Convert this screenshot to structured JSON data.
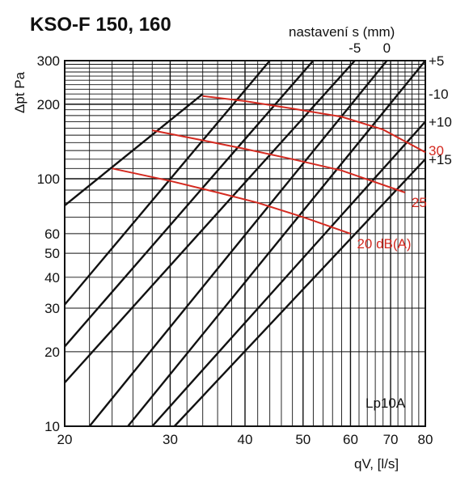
{
  "chart_data": {
    "type": "line",
    "title": "KSO-F 150, 160",
    "top_axis_label": "nastavení s (mm)",
    "xlabel": "qV, [l/s]",
    "ylabel": "Δpt Pa",
    "x_scale": "log",
    "y_scale": "log",
    "xlim": [
      20,
      80
    ],
    "ylim": [
      10,
      300
    ],
    "x_ticks": [
      20,
      30,
      40,
      50,
      60,
      70,
      80
    ],
    "y_ticks": [
      10,
      20,
      30,
      40,
      50,
      60,
      100,
      200,
      300
    ],
    "grid": true,
    "settings_lines": [
      {
        "label": "-10",
        "points": [
          [
            20,
            78
          ],
          [
            34,
            220
          ]
        ]
      },
      {
        "label": "",
        "points": [
          [
            20,
            31
          ],
          [
            44,
            300
          ]
        ]
      },
      {
        "label": "",
        "points": [
          [
            20,
            21
          ],
          [
            52,
            300
          ]
        ]
      },
      {
        "label": "-5",
        "points": [
          [
            20,
            15
          ],
          [
            61,
            300
          ]
        ]
      },
      {
        "label": "0",
        "points": [
          [
            22,
            10
          ],
          [
            69,
            300
          ]
        ]
      },
      {
        "label": "+5",
        "points": [
          [
            25.5,
            10
          ],
          [
            80,
            300
          ]
        ]
      },
      {
        "label": "+10",
        "points": [
          [
            28,
            10
          ],
          [
            80,
            170
          ]
        ]
      },
      {
        "label": "+15",
        "points": [
          [
            30.5,
            10
          ],
          [
            80,
            120
          ]
        ]
      }
    ],
    "series": [
      {
        "name": "20 dB(A)",
        "label": "20 dB(A)",
        "color": "#d42a20",
        "points": [
          [
            24,
            110
          ],
          [
            30,
            98
          ],
          [
            36,
            88
          ],
          [
            42,
            80
          ],
          [
            50,
            70
          ],
          [
            60,
            60
          ]
        ]
      },
      {
        "name": "25",
        "label": "25",
        "color": "#d42a20",
        "points": [
          [
            28,
            157
          ],
          [
            34,
            143
          ],
          [
            40,
            132
          ],
          [
            48,
            120
          ],
          [
            58,
            108
          ],
          [
            74,
            88
          ]
        ]
      },
      {
        "name": "30",
        "label": "30",
        "color": "#d42a20",
        "points": [
          [
            34,
            216
          ],
          [
            40,
            206
          ],
          [
            48,
            192
          ],
          [
            58,
            178
          ],
          [
            68,
            158
          ],
          [
            80,
            128
          ]
        ]
      }
    ],
    "annotation": "Lp10A"
  }
}
